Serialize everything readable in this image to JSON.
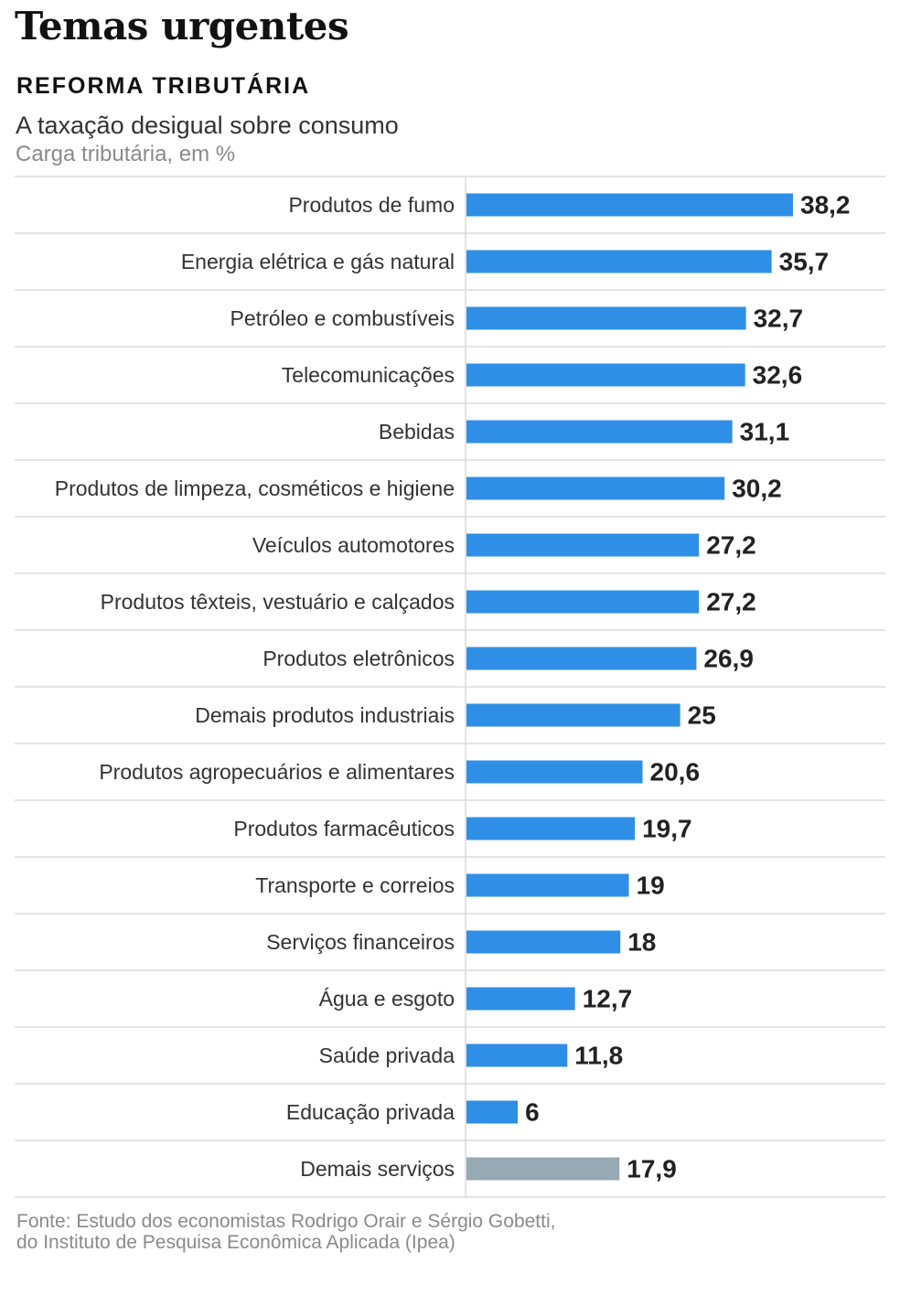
{
  "header": {
    "headline": "Temas urgentes",
    "kicker": "REFORMA TRIBUTÁRIA",
    "title": "A taxação desigual sobre consumo",
    "subtitle": "Carga tributária, em %"
  },
  "footer": {
    "source_line1": "Fonte: Estudo dos economistas Rodrigo Orair e Sérgio Gobetti,",
    "source_line2": "do Instituto de Pesquisa Econômica Aplicada (Ipea)"
  },
  "colors": {
    "bar": "#2f8fe6",
    "bar_muted": "#97a9b5",
    "gridline": "#dcdcdc",
    "label": "#333333",
    "value": "#222222"
  },
  "chart_data": {
    "type": "bar",
    "orientation": "horizontal",
    "categories": [
      "Produtos de fumo",
      "Energia elétrica e gás natural",
      "Petróleo e combustíveis",
      "Telecomunicações",
      "Bebidas",
      "Produtos de limpeza, cosméticos e higiene",
      "Veículos automotores",
      "Produtos têxteis, vestuário e calçados",
      "Produtos eletrônicos",
      "Demais produtos industriais",
      "Produtos agropecuários e alimentares",
      "Produtos farmacêuticos",
      "Transporte e correios",
      "Serviços financeiros",
      "Água e esgoto",
      "Saúde privada",
      "Educação privada",
      "Demais serviços"
    ],
    "values": [
      38.2,
      35.7,
      32.7,
      32.6,
      31.1,
      30.2,
      27.2,
      27.2,
      26.9,
      25,
      20.6,
      19.7,
      19,
      18,
      12.7,
      11.8,
      6,
      17.9
    ],
    "value_labels": [
      "38,2",
      "35,7",
      "32,7",
      "32,6",
      "31,1",
      "30,2",
      "27,2",
      "27,2",
      "26,9",
      "25",
      "20,6",
      "19,7",
      "19",
      "18",
      "12,7",
      "11,8",
      "6",
      "17,9"
    ],
    "highlight": [
      false,
      false,
      false,
      false,
      false,
      false,
      false,
      false,
      false,
      false,
      false,
      false,
      false,
      false,
      false,
      false,
      false,
      true
    ],
    "xlim": [
      0,
      38.2
    ],
    "grid": true,
    "title": "A taxação desigual sobre consumo",
    "xlabel": "",
    "ylabel": ""
  }
}
